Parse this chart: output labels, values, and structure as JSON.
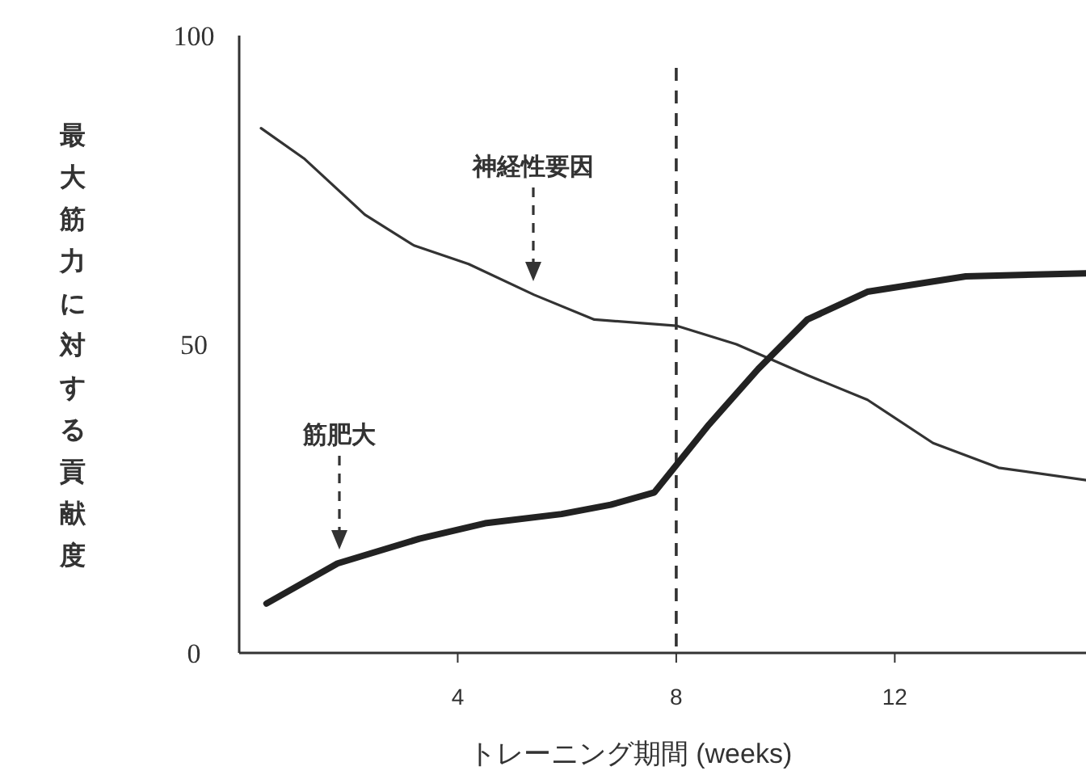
{
  "chart_data": {
    "type": "line",
    "xlabel": "トレーニング期間 (weeks)",
    "ylabel": "最大筋力に対する貢献度",
    "xlim": [
      0,
      15.5
    ],
    "ylim": [
      0,
      100
    ],
    "xticks": [
      4,
      8,
      12
    ],
    "yticks": [
      0,
      50,
      100
    ],
    "grid": false,
    "marker": "none",
    "line_style": "solid",
    "series": [
      {
        "color": "#333333",
        "x": [
          0.4,
          1.2,
          2.3,
          3.2,
          4.2,
          5.4,
          6.5,
          8,
          9.1,
          10.4,
          11.5,
          12.7,
          13.9,
          15.5
        ],
        "values": [
          85,
          80,
          71,
          66,
          63,
          58,
          54,
          53,
          50,
          45,
          41,
          34,
          30,
          28
        ]
      },
      {
        "color": "#222222",
        "x": [
          0.5,
          1.8,
          3.3,
          4.5,
          5.9,
          6.8,
          7.6,
          8.6,
          9.5,
          10.4,
          11.5,
          13.3,
          15.5
        ],
        "values": [
          8,
          14.5,
          18.5,
          21,
          22.5,
          24,
          26,
          37,
          46,
          54,
          58.5,
          61,
          61.5
        ]
      }
    ],
    "ref_lines": [
      {
        "axis": "x",
        "value": 8,
        "line_style": "dashed",
        "color": "#333333"
      }
    ],
    "annotations": [
      "神経性要因",
      "筋肥大"
    ]
  }
}
